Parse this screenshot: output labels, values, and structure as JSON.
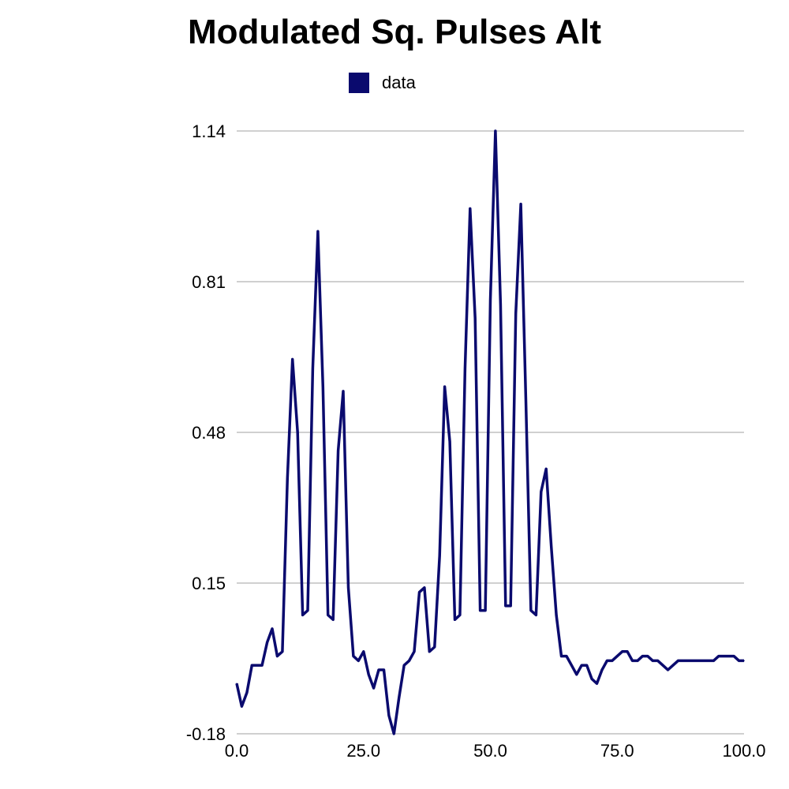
{
  "chart_data": {
    "type": "line",
    "title": "Modulated Sq. Pulses Alt",
    "xlabel": "",
    "ylabel": "",
    "xlim": [
      0,
      100
    ],
    "ylim": [
      -0.18,
      1.14
    ],
    "xticks": [
      "0.0",
      "25.0",
      "50.0",
      "75.0",
      "100.0"
    ],
    "yticks": [
      "-0.18",
      "0.15",
      "0.48",
      "0.81",
      "1.14"
    ],
    "grid": true,
    "legend_position": "top-center",
    "series": [
      {
        "name": "data",
        "color": "#0a0a6e",
        "x": [
          0,
          1,
          2,
          3,
          4,
          5,
          6,
          7,
          8,
          9,
          10,
          11,
          12,
          13,
          14,
          15,
          16,
          17,
          18,
          19,
          20,
          21,
          22,
          23,
          24,
          25,
          26,
          27,
          28,
          29,
          30,
          31,
          32,
          33,
          34,
          35,
          36,
          37,
          38,
          39,
          40,
          41,
          42,
          43,
          44,
          45,
          46,
          47,
          48,
          49,
          50,
          51,
          52,
          53,
          54,
          55,
          56,
          57,
          58,
          59,
          60,
          61,
          62,
          63,
          64,
          65,
          66,
          67,
          68,
          69,
          70,
          71,
          72,
          73,
          74,
          75,
          76,
          77,
          78,
          79,
          80,
          81,
          82,
          83,
          84,
          85,
          86,
          87,
          88,
          89,
          90,
          91,
          92,
          93,
          94,
          95,
          96,
          97,
          98,
          99,
          100
        ],
        "y": [
          -0.07,
          -0.12,
          -0.09,
          -0.03,
          -0.03,
          -0.03,
          0.02,
          0.05,
          -0.01,
          0.0,
          0.38,
          0.64,
          0.48,
          0.08,
          0.09,
          0.62,
          0.92,
          0.58,
          0.08,
          0.07,
          0.44,
          0.57,
          0.14,
          -0.01,
          -0.02,
          0.0,
          -0.05,
          -0.08,
          -0.04,
          -0.04,
          -0.14,
          -0.18,
          -0.1,
          -0.03,
          -0.02,
          0.0,
          0.13,
          0.14,
          0.0,
          0.01,
          0.21,
          0.58,
          0.46,
          0.07,
          0.08,
          0.62,
          0.97,
          0.73,
          0.09,
          0.09,
          0.77,
          1.14,
          0.76,
          0.1,
          0.1,
          0.74,
          0.98,
          0.55,
          0.09,
          0.08,
          0.35,
          0.4,
          0.23,
          0.08,
          -0.01,
          -0.01,
          -0.03,
          -0.05,
          -0.03,
          -0.03,
          -0.06,
          -0.07,
          -0.04,
          -0.02,
          -0.02,
          -0.01,
          0.0,
          0.0,
          -0.02,
          -0.02,
          -0.01,
          -0.01,
          -0.02,
          -0.02,
          -0.03,
          -0.04,
          -0.03,
          -0.02,
          -0.02,
          -0.02,
          -0.02,
          -0.02,
          -0.02,
          -0.02,
          -0.02,
          -0.01,
          -0.01,
          -0.01,
          -0.01,
          -0.02,
          -0.02
        ]
      }
    ]
  }
}
